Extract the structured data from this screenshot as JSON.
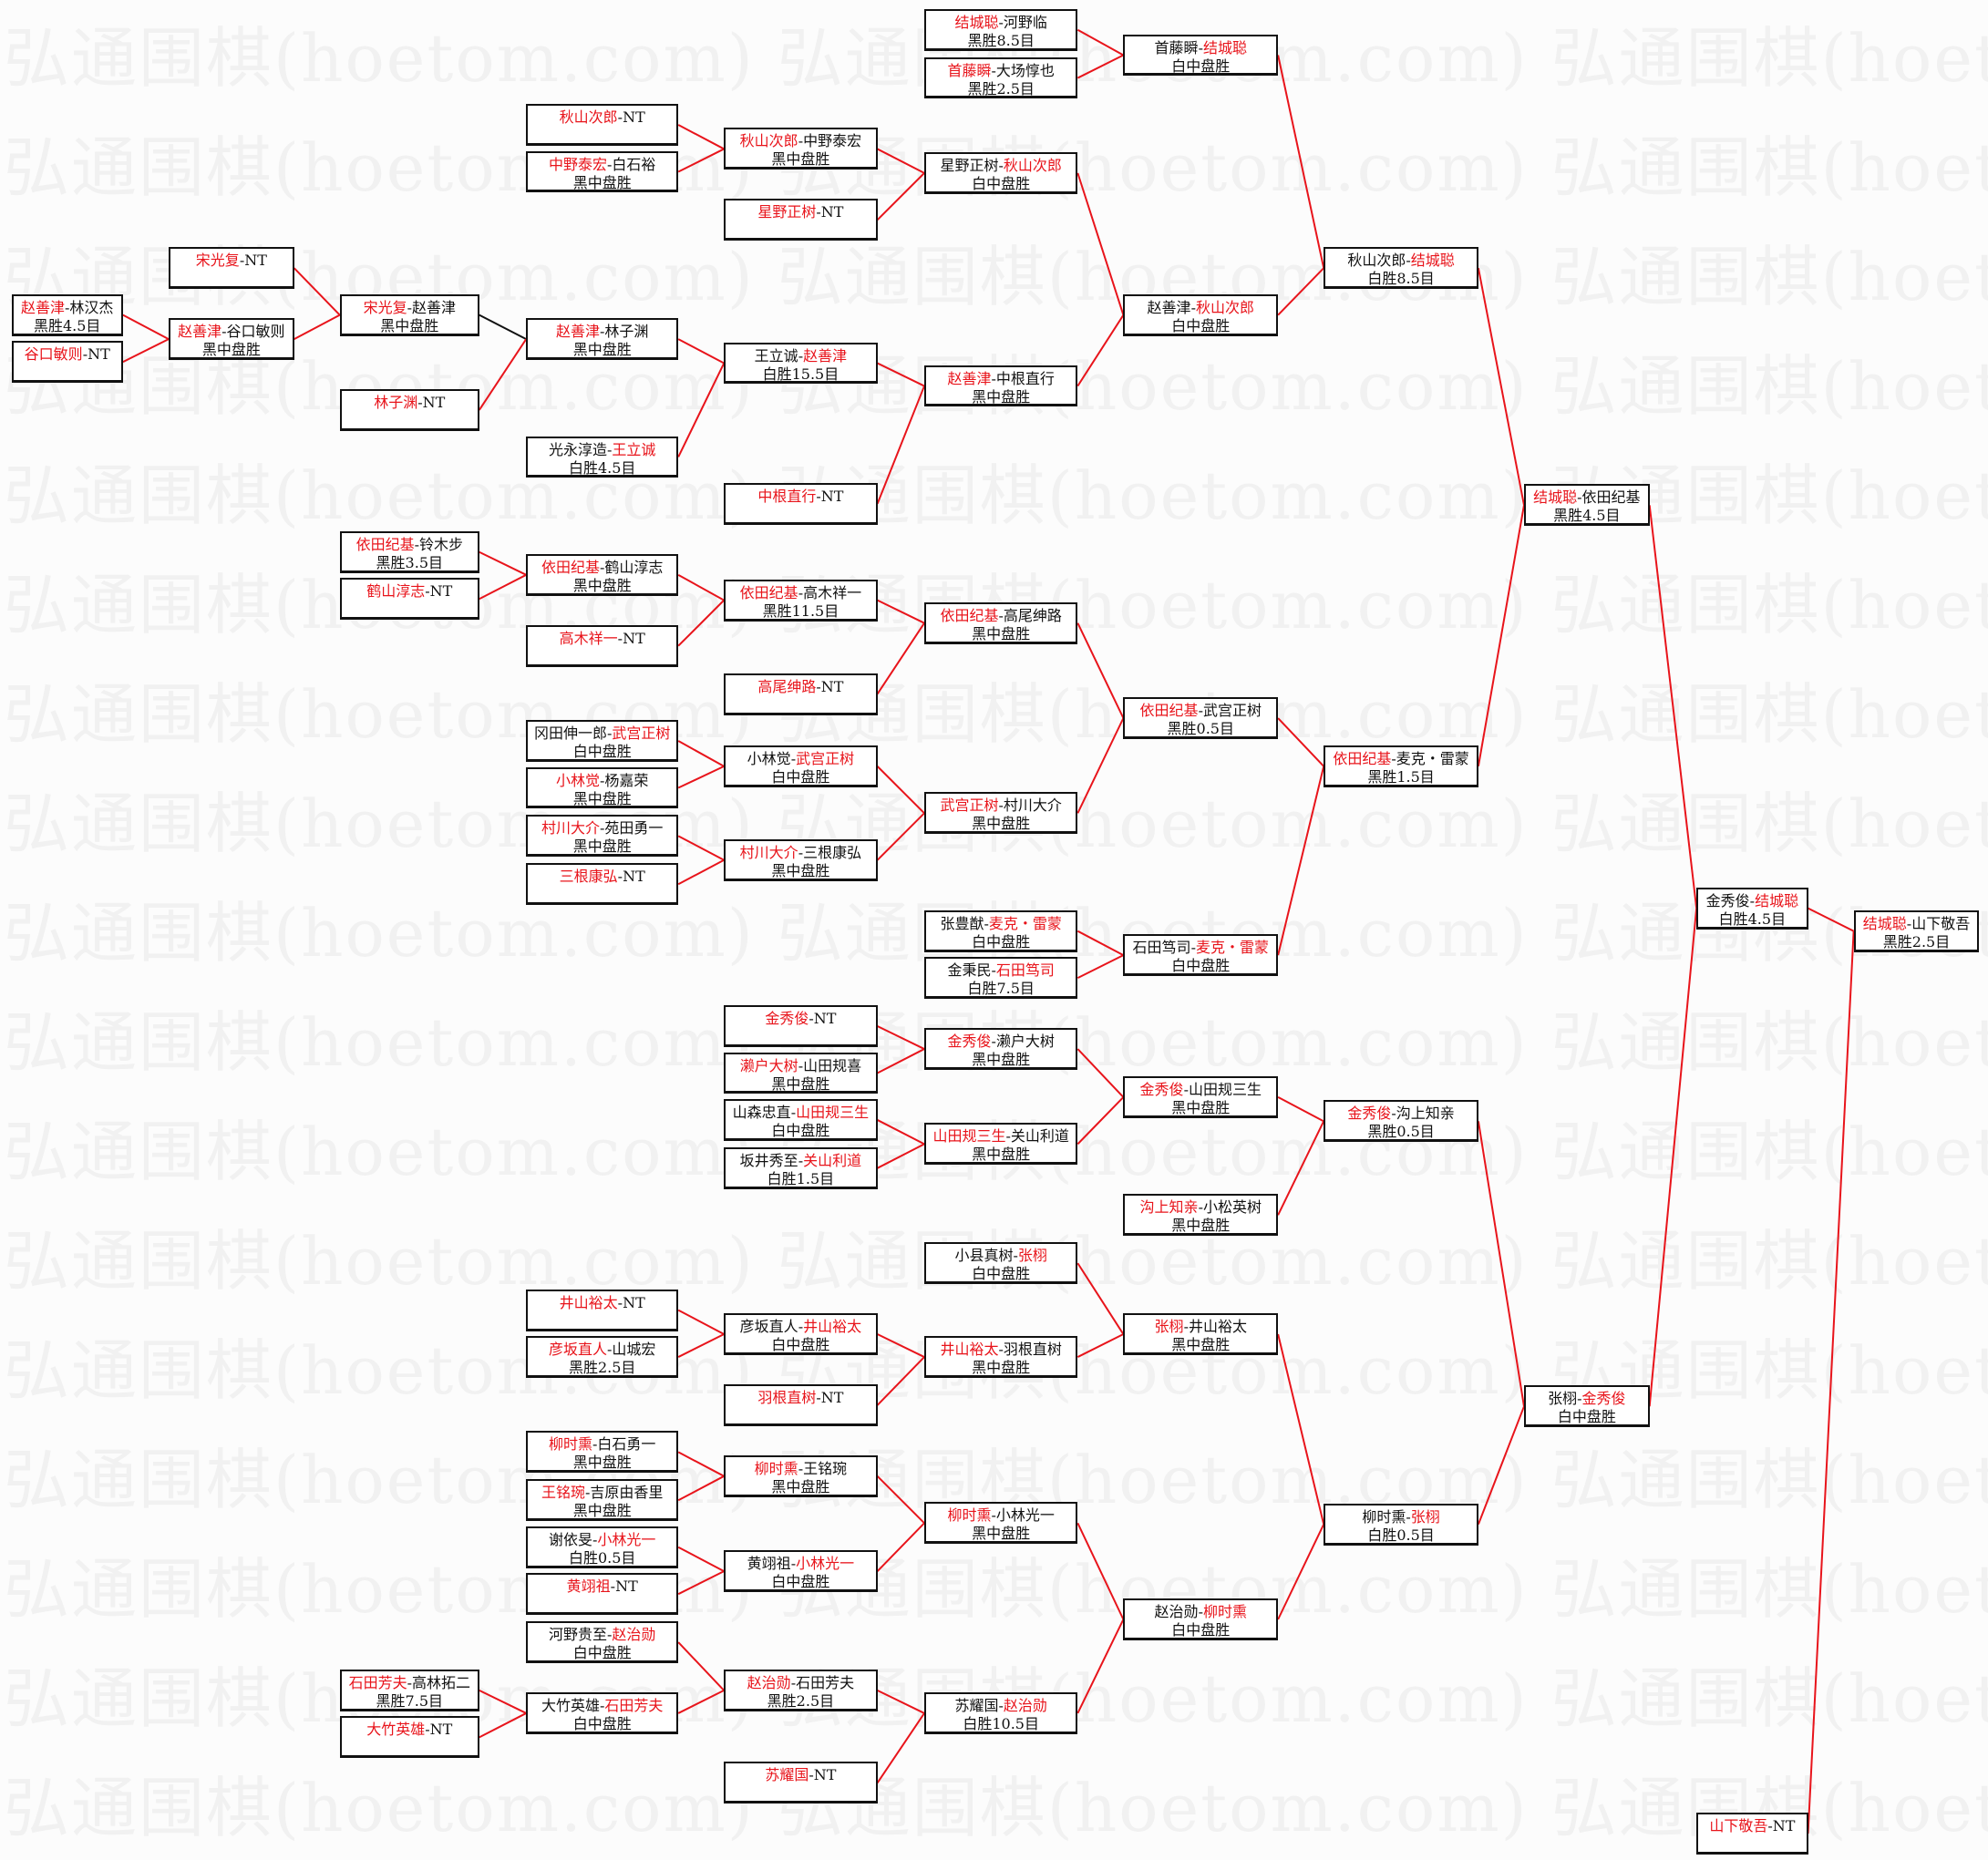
{
  "watermark": "弘通围棋(hoetom.com)",
  "colors": {
    "winner": "#e8141b",
    "line": "#e8141b",
    "border": "#111111"
  },
  "matches": [
    {
      "players": [
        "结城聪",
        "山下敬吾"
      ],
      "winner": 0,
      "result": "黑胜2.5目"
    },
    {
      "players": [
        "金秀俊",
        "结城聪"
      ],
      "winner": 1,
      "result": "白胜4.5目"
    },
    {
      "players": [
        "山下敬吾",
        "NT"
      ],
      "winner": 0,
      "result": ""
    },
    {
      "players": [
        "结城聪",
        "依田纪基"
      ],
      "winner": 0,
      "result": "黑胜4.5目"
    },
    {
      "players": [
        "张栩",
        "金秀俊"
      ],
      "winner": 1,
      "result": "白中盘胜"
    },
    {
      "players": [
        "秋山次郎",
        "结城聪"
      ],
      "winner": 1,
      "result": "白胜8.5目"
    },
    {
      "players": [
        "依田纪基",
        "麦克・雷蒙"
      ],
      "winner": 0,
      "result": "黑胜1.5目"
    },
    {
      "players": [
        "金秀俊",
        "沟上知亲"
      ],
      "winner": 0,
      "result": "黑胜0.5目"
    },
    {
      "players": [
        "柳时熏",
        "张栩"
      ],
      "winner": 1,
      "result": "白胜0.5目"
    },
    {
      "players": [
        "首藤瞬",
        "结城聪"
      ],
      "winner": 1,
      "result": "白中盘胜"
    },
    {
      "players": [
        "赵善津",
        "秋山次郎"
      ],
      "winner": 1,
      "result": "白中盘胜"
    },
    {
      "players": [
        "依田纪基",
        "武宫正树"
      ],
      "winner": 0,
      "result": "黑胜0.5目"
    },
    {
      "players": [
        "石田笃司",
        "麦克・雷蒙"
      ],
      "winner": 1,
      "result": "白中盘胜"
    },
    {
      "players": [
        "金秀俊",
        "山田规三生"
      ],
      "winner": 0,
      "result": "黑中盘胜"
    },
    {
      "players": [
        "沟上知亲",
        "小松英树"
      ],
      "winner": 0,
      "result": "黑中盘胜"
    },
    {
      "players": [
        "张栩",
        "井山裕太"
      ],
      "winner": 0,
      "result": "黑中盘胜"
    },
    {
      "players": [
        "赵治勋",
        "柳时熏"
      ],
      "winner": 1,
      "result": "白中盘胜"
    },
    {
      "players": [
        "结城聪",
        "河野临"
      ],
      "winner": 0,
      "result": "黑胜8.5目"
    },
    {
      "players": [
        "首藤瞬",
        "大场惇也"
      ],
      "winner": 0,
      "result": "黑胜2.5目"
    },
    {
      "players": [
        "星野正树",
        "秋山次郎"
      ],
      "winner": 1,
      "result": "白中盘胜"
    },
    {
      "players": [
        "赵善津",
        "中根直行"
      ],
      "winner": 0,
      "result": "黑中盘胜"
    },
    {
      "players": [
        "依田纪基",
        "高尾绅路"
      ],
      "winner": 0,
      "result": "黑中盘胜"
    },
    {
      "players": [
        "武宫正树",
        "村川大介"
      ],
      "winner": 0,
      "result": "黑中盘胜"
    },
    {
      "players": [
        "张豊猷",
        "麦克・雷蒙"
      ],
      "winner": 1,
      "result": "白中盘胜"
    },
    {
      "players": [
        "金秉民",
        "石田笃司"
      ],
      "winner": 1,
      "result": "白胜7.5目"
    },
    {
      "players": [
        "金秀俊",
        "濑户大树"
      ],
      "winner": 0,
      "result": "黑中盘胜"
    },
    {
      "players": [
        "山田规三生",
        "关山利道"
      ],
      "winner": 0,
      "result": "黑中盘胜"
    },
    {
      "players": [
        "小县真树",
        "张栩"
      ],
      "winner": 1,
      "result": "白中盘胜"
    },
    {
      "players": [
        "井山裕太",
        "羽根直树"
      ],
      "winner": 0,
      "result": "黑中盘胜"
    },
    {
      "players": [
        "柳时熏",
        "小林光一"
      ],
      "winner": 0,
      "result": "黑中盘胜"
    },
    {
      "players": [
        "苏耀国",
        "赵治勋"
      ],
      "winner": 1,
      "result": "白胜10.5目"
    },
    {
      "players": [
        "秋山次郎",
        "中野泰宏"
      ],
      "winner": 0,
      "result": "黑中盘胜"
    },
    {
      "players": [
        "星野正树",
        "NT"
      ],
      "winner": 0,
      "result": ""
    },
    {
      "players": [
        "王立诚",
        "赵善津"
      ],
      "winner": 1,
      "result": "白胜15.5目"
    },
    {
      "players": [
        "中根直行",
        "NT"
      ],
      "winner": 0,
      "result": ""
    },
    {
      "players": [
        "依田纪基",
        "高木祥一"
      ],
      "winner": 0,
      "result": "黑胜11.5目"
    },
    {
      "players": [
        "高尾绅路",
        "NT"
      ],
      "winner": 0,
      "result": ""
    },
    {
      "players": [
        "小林觉",
        "武宫正树"
      ],
      "winner": 1,
      "result": "白中盘胜"
    },
    {
      "players": [
        "村川大介",
        "三根康弘"
      ],
      "winner": 0,
      "result": "黑中盘胜"
    },
    {
      "players": [
        "金秀俊",
        "NT"
      ],
      "winner": 0,
      "result": ""
    },
    {
      "players": [
        "濑户大树",
        "山田规喜"
      ],
      "winner": 0,
      "result": "黑中盘胜"
    },
    {
      "players": [
        "山森忠直",
        "山田规三生"
      ],
      "winner": 1,
      "result": "白中盘胜"
    },
    {
      "players": [
        "坂井秀至",
        "关山利道"
      ],
      "winner": 1,
      "result": "白胜1.5目"
    },
    {
      "players": [
        "彦坂直人",
        "井山裕太"
      ],
      "winner": 1,
      "result": "白中盘胜"
    },
    {
      "players": [
        "羽根直树",
        "NT"
      ],
      "winner": 0,
      "result": ""
    },
    {
      "players": [
        "柳时熏",
        "王铭琬"
      ],
      "winner": 0,
      "result": "黑中盘胜"
    },
    {
      "players": [
        "黄翊祖",
        "小林光一"
      ],
      "winner": 1,
      "result": "白中盘胜"
    },
    {
      "players": [
        "赵治勋",
        "石田芳夫"
      ],
      "winner": 0,
      "result": "黑胜2.5目"
    },
    {
      "players": [
        "苏耀国",
        "NT"
      ],
      "winner": 0,
      "result": ""
    },
    {
      "players": [
        "秋山次郎",
        "NT"
      ],
      "winner": 0,
      "result": ""
    },
    {
      "players": [
        "中野泰宏",
        "白石裕"
      ],
      "winner": 0,
      "result": "黑中盘胜"
    },
    {
      "players": [
        "赵善津",
        "林子渊"
      ],
      "winner": 0,
      "result": "黑中盘胜"
    },
    {
      "players": [
        "光永淳造",
        "王立诚"
      ],
      "winner": 1,
      "result": "白胜4.5目"
    },
    {
      "players": [
        "依田纪基",
        "鹤山淳志"
      ],
      "winner": 0,
      "result": "黑中盘胜"
    },
    {
      "players": [
        "高木祥一",
        "NT"
      ],
      "winner": 0,
      "result": ""
    },
    {
      "players": [
        "冈田伸一郎",
        "武宫正树"
      ],
      "winner": 1,
      "result": "白中盘胜"
    },
    {
      "players": [
        "小林觉",
        "杨嘉荣"
      ],
      "winner": 0,
      "result": "黑中盘胜"
    },
    {
      "players": [
        "村川大介",
        "苑田勇一"
      ],
      "winner": 0,
      "result": "黑中盘胜"
    },
    {
      "players": [
        "三根康弘",
        "NT"
      ],
      "winner": 0,
      "result": ""
    },
    {
      "players": [
        "井山裕太",
        "NT"
      ],
      "winner": 0,
      "result": ""
    },
    {
      "players": [
        "彦坂直人",
        "山城宏"
      ],
      "winner": 0,
      "result": "黑胜2.5目"
    },
    {
      "players": [
        "柳时熏",
        "白石勇一"
      ],
      "winner": 0,
      "result": "黑中盘胜"
    },
    {
      "players": [
        "王铭琬",
        "吉原由香里"
      ],
      "winner": 0,
      "result": "黑中盘胜"
    },
    {
      "players": [
        "谢依旻",
        "小林光一"
      ],
      "winner": 1,
      "result": "白胜0.5目"
    },
    {
      "players": [
        "黄翊祖",
        "NT"
      ],
      "winner": 0,
      "result": ""
    },
    {
      "players": [
        "河野贵至",
        "赵治勋"
      ],
      "winner": 1,
      "result": "白中盘胜"
    },
    {
      "players": [
        "大竹英雄",
        "石田芳夫"
      ],
      "winner": 1,
      "result": "白中盘胜"
    },
    {
      "players": [
        "宋光复",
        "赵善津"
      ],
      "winner": 0,
      "result": "黑中盘胜"
    },
    {
      "players": [
        "林子渊",
        "NT"
      ],
      "winner": 0,
      "result": ""
    },
    {
      "players": [
        "依田纪基",
        "铃木步"
      ],
      "winner": 0,
      "result": "黑胜3.5目"
    },
    {
      "players": [
        "鹤山淳志",
        "NT"
      ],
      "winner": 0,
      "result": ""
    },
    {
      "players": [
        "石田芳夫",
        "高林拓二"
      ],
      "winner": 0,
      "result": "黑胜7.5目"
    },
    {
      "players": [
        "大竹英雄",
        "NT"
      ],
      "winner": 0,
      "result": ""
    },
    {
      "players": [
        "宋光复",
        "NT"
      ],
      "winner": 0,
      "result": ""
    },
    {
      "players": [
        "赵善津",
        "谷口敏则"
      ],
      "winner": 0,
      "result": "黑中盘胜"
    },
    {
      "players": [
        "赵善津",
        "林汉杰"
      ],
      "winner": 0,
      "result": "黑胜4.5目"
    },
    {
      "players": [
        "谷口敏则",
        "NT"
      ],
      "winner": 0,
      "result": ""
    }
  ]
}
